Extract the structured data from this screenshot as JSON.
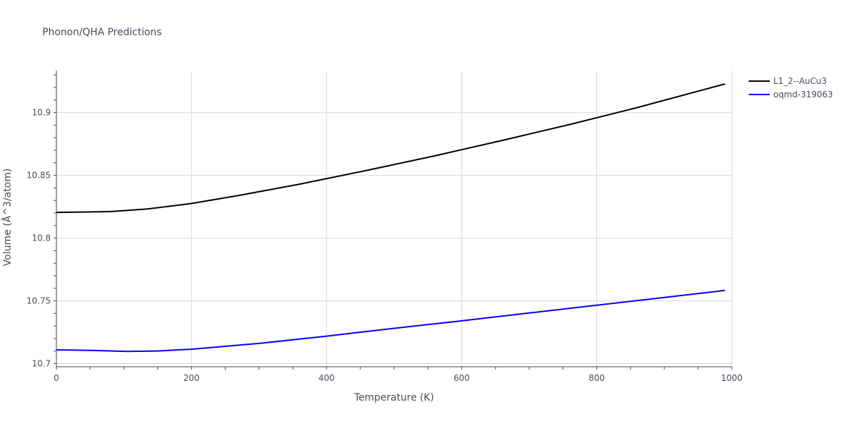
{
  "chart_data": {
    "type": "line",
    "title": "Phonon/QHA Predictions",
    "xlabel": "Temperature (K)",
    "ylabel": "Volume (Å^3/atom)",
    "xlim": [
      0,
      1000
    ],
    "ylim": [
      10.6975,
      10.9335
    ],
    "x_ticks": [
      0,
      200,
      400,
      600,
      800,
      1000
    ],
    "y_ticks": [
      10.7,
      10.75,
      10.8,
      10.85,
      10.9
    ],
    "x_tick_labels": [
      "0",
      "200",
      "400",
      "600",
      "800",
      "1000"
    ],
    "y_tick_labels": [
      "10.7",
      "10.75",
      "10.8",
      "10.85",
      "10.9"
    ],
    "grid": true,
    "legend_position": "top-right",
    "series": [
      {
        "name": "L1_2--AuCu3",
        "color": "#000000",
        "x": [
          0,
          40,
          80,
          135,
          200,
          270,
          360,
          460,
          560,
          660,
          760,
          860,
          990
        ],
        "y": [
          10.8205,
          10.8208,
          10.8211,
          10.8232,
          10.8276,
          10.834,
          10.843,
          10.854,
          10.8655,
          10.8778,
          10.8905,
          10.904,
          10.9228
        ]
      },
      {
        "name": "oqmd-319063",
        "color": "#0000ff",
        "x": [
          0,
          50,
          105,
          150,
          200,
          300,
          400,
          500,
          600,
          700,
          800,
          900,
          990
        ],
        "y": [
          10.711,
          10.7106,
          10.7097,
          10.7101,
          10.7115,
          10.7161,
          10.7219,
          10.7281,
          10.7341,
          10.7403,
          10.7465,
          10.7527,
          10.7583
        ]
      }
    ]
  }
}
